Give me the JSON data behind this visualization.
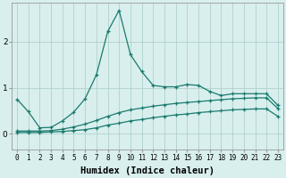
{
  "xlabel": "Humidex (Indice chaleur)",
  "ylabel": "",
  "bg_color": "#d8efee",
  "grid_color": "#b0d0cc",
  "line_color": "#1a7a6e",
  "x_ticks": [
    0,
    1,
    2,
    3,
    4,
    5,
    6,
    7,
    8,
    9,
    10,
    11,
    12,
    13,
    14,
    15,
    16,
    17,
    18,
    19,
    20,
    21,
    22,
    23
  ],
  "ylim": [
    -0.35,
    2.85
  ],
  "xlim": [
    -0.5,
    23.5
  ],
  "series1_x": [
    0,
    1,
    2,
    3,
    4,
    5,
    6,
    7,
    8,
    9,
    10,
    11,
    12,
    13,
    14,
    15,
    16,
    17,
    18,
    19,
    20,
    21,
    22,
    23
  ],
  "series1_y": [
    0.75,
    0.48,
    0.13,
    0.14,
    0.28,
    0.47,
    0.76,
    1.28,
    2.22,
    2.68,
    1.72,
    1.35,
    1.05,
    1.02,
    1.02,
    1.07,
    1.05,
    0.92,
    0.83,
    0.87,
    0.87,
    0.87,
    0.87,
    0.62
  ],
  "series2_x": [
    0,
    1,
    2,
    3,
    4,
    5,
    6,
    7,
    8,
    9,
    10,
    11,
    12,
    13,
    14,
    15,
    16,
    17,
    18,
    19,
    20,
    21,
    22,
    23
  ],
  "series2_y": [
    0.06,
    0.06,
    0.06,
    0.07,
    0.1,
    0.15,
    0.21,
    0.29,
    0.38,
    0.46,
    0.52,
    0.56,
    0.6,
    0.63,
    0.66,
    0.68,
    0.7,
    0.72,
    0.74,
    0.76,
    0.77,
    0.78,
    0.78,
    0.55
  ],
  "series3_x": [
    0,
    1,
    2,
    3,
    4,
    5,
    6,
    7,
    8,
    9,
    10,
    11,
    12,
    13,
    14,
    15,
    16,
    17,
    18,
    19,
    20,
    21,
    22,
    23
  ],
  "series3_y": [
    0.03,
    0.03,
    0.03,
    0.04,
    0.05,
    0.07,
    0.09,
    0.13,
    0.19,
    0.23,
    0.28,
    0.31,
    0.35,
    0.38,
    0.41,
    0.43,
    0.46,
    0.48,
    0.5,
    0.52,
    0.53,
    0.54,
    0.54,
    0.38
  ],
  "yticks": [
    0,
    1,
    2
  ],
  "tick_fontsize": 5.5,
  "label_fontsize": 7.5
}
